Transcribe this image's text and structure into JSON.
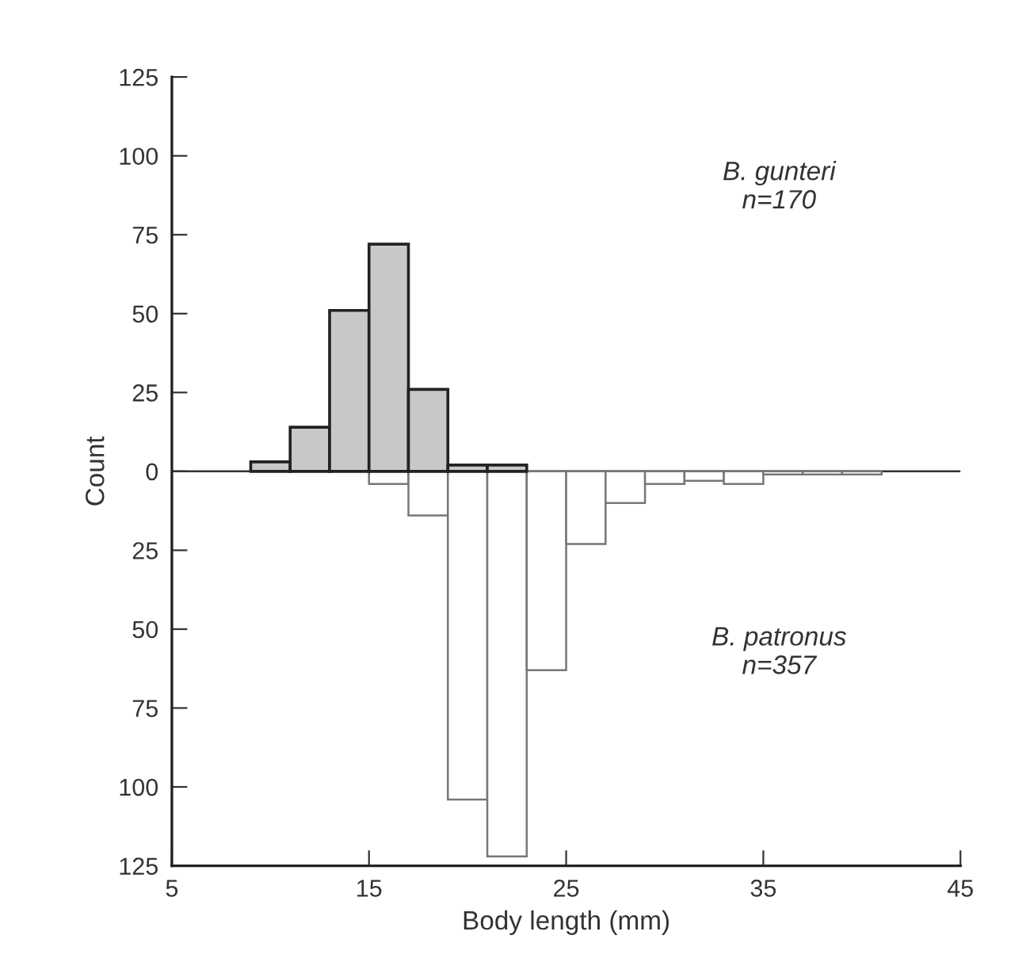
{
  "chart_data": {
    "type": "histogram",
    "xlabel": "Body length (mm)",
    "ylabel": "Count",
    "bins": [
      9,
      11,
      13,
      15,
      17,
      19,
      21,
      23,
      25,
      27,
      29,
      31,
      33,
      35,
      37,
      39,
      41
    ],
    "series": [
      {
        "color": "#c8c8c8",
        "values": [
          3,
          14,
          51,
          72,
          26,
          2,
          2,
          null,
          null,
          null,
          null,
          null,
          null,
          null,
          null,
          null
        ]
      },
      {
        "color": "#ffffff",
        "values": [
          null,
          null,
          null,
          -4,
          -14,
          -104,
          -122,
          -63,
          -23,
          -10,
          -4,
          -3,
          -4,
          -1,
          -1,
          -1
        ]
      }
    ],
    "annotations": [
      {
        "text": "B. gunteri\nn=170"
      },
      {
        "text": "B. patronus\nn=357"
      }
    ],
    "ref_lines": [
      {
        "axis": "y",
        "value": 0
      }
    ],
    "xlim": [
      5,
      45
    ],
    "xticks": [
      5,
      15,
      25,
      35,
      45
    ],
    "ylim": [
      -125,
      125
    ],
    "yticks": [
      {
        "value": -125,
        "label": "125"
      },
      {
        "value": -100,
        "label": "100"
      },
      {
        "value": -75,
        "label": "75"
      },
      {
        "value": -50,
        "label": "50"
      },
      {
        "value": -25,
        "label": "25"
      },
      0,
      25,
      50,
      75,
      100,
      125
    ],
    "grid": false,
    "legend": false
  }
}
